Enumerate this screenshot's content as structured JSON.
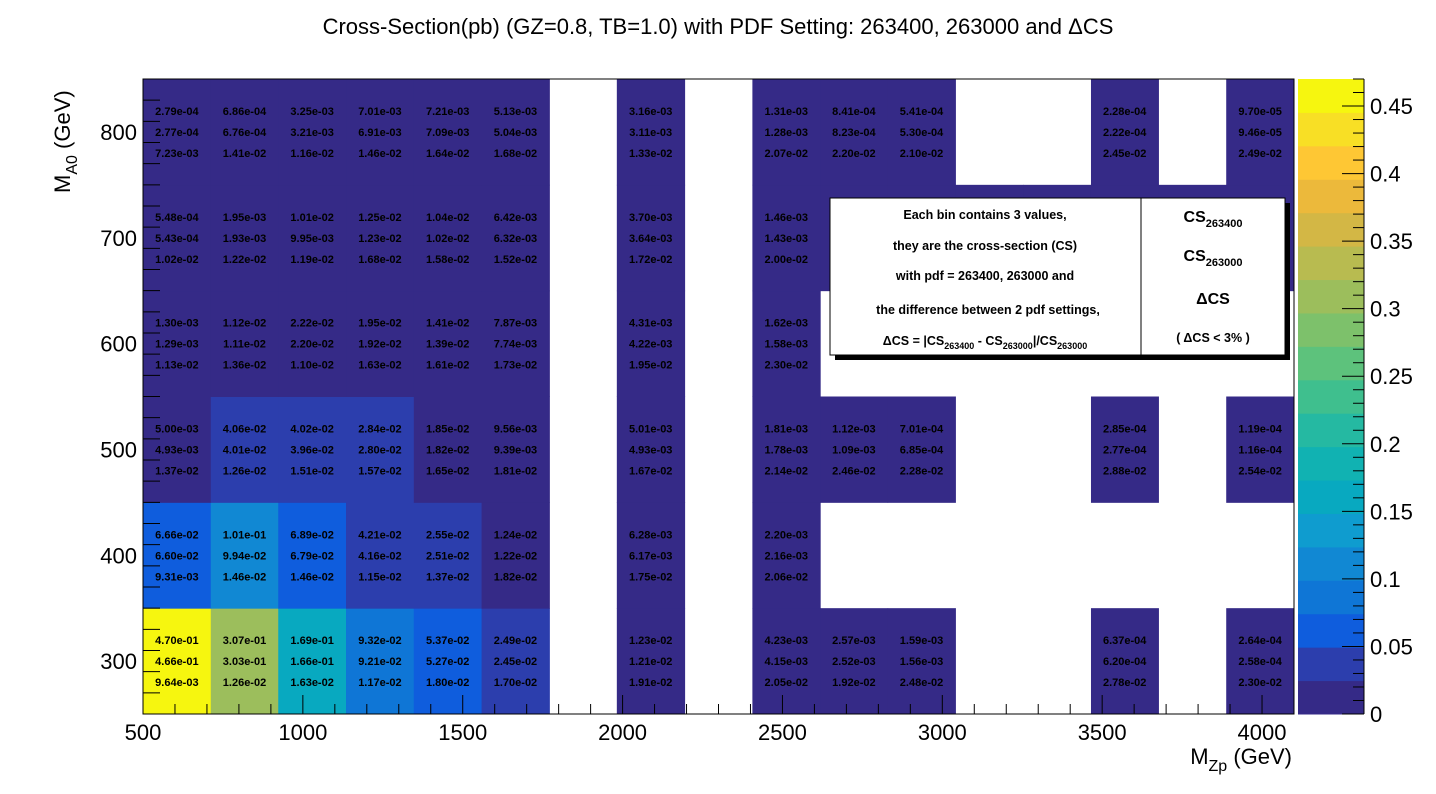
{
  "chart_data": {
    "type": "heatmap",
    "title": "Cross-Section(pb) (GZ=0.8, TB=1.0) with PDF Setting: 263400, 263000 and ΔCS",
    "xlabel": {
      "base": "M",
      "sub": "Zp",
      "rest": " (GeV)"
    },
    "ylabel": {
      "base": "M",
      "sub": "A0",
      "rest": " (GeV)"
    },
    "xlim": [
      500,
      4100
    ],
    "ylim": [
      250,
      850
    ],
    "x_ticks": [
      "500",
      "1000",
      "1500",
      "2000",
      "2500",
      "3000",
      "3500",
      "4000"
    ],
    "y_ticks": [
      "300",
      "400",
      "500",
      "600",
      "700",
      "800"
    ],
    "zlim": [
      0,
      0.47
    ],
    "z_ticks": [
      "0",
      "0.05",
      "0.1",
      "0.15",
      "0.2",
      "0.25",
      "0.3",
      "0.35",
      "0.4",
      "0.45"
    ],
    "x_bin_edges": [
      500,
      712,
      923,
      1135,
      1347,
      1559,
      1771,
      1982,
      2194,
      2406,
      2618,
      2829,
      3041,
      3253,
      3465,
      3676,
      3888,
      4100
    ],
    "y_bin_edges": [
      250,
      350,
      450,
      550,
      650,
      750,
      850
    ],
    "bins": [
      {
        "xb": 0,
        "yb": 0,
        "z": 0.47,
        "v": [
          "4.70e-01",
          "4.66e-01",
          "9.64e-03"
        ]
      },
      {
        "xb": 1,
        "yb": 0,
        "z": 0.307,
        "v": [
          "3.07e-01",
          "3.03e-01",
          "1.26e-02"
        ]
      },
      {
        "xb": 2,
        "yb": 0,
        "z": 0.169,
        "v": [
          "1.69e-01",
          "1.66e-01",
          "1.63e-02"
        ]
      },
      {
        "xb": 3,
        "yb": 0,
        "z": 0.0932,
        "v": [
          "9.32e-02",
          "9.21e-02",
          "1.17e-02"
        ]
      },
      {
        "xb": 4,
        "yb": 0,
        "z": 0.0537,
        "v": [
          "5.37e-02",
          "5.27e-02",
          "1.80e-02"
        ]
      },
      {
        "xb": 5,
        "yb": 0,
        "z": 0.0249,
        "v": [
          "2.49e-02",
          "2.45e-02",
          "1.70e-02"
        ]
      },
      {
        "xb": 7,
        "yb": 0,
        "z": 0.0123,
        "v": [
          "1.23e-02",
          "1.21e-02",
          "1.91e-02"
        ]
      },
      {
        "xb": 9,
        "yb": 0,
        "z": 0.00423,
        "v": [
          "4.23e-03",
          "4.15e-03",
          "2.05e-02"
        ]
      },
      {
        "xb": 10,
        "yb": 0,
        "z": 0.00257,
        "v": [
          "2.57e-03",
          "2.52e-03",
          "1.92e-02"
        ]
      },
      {
        "xb": 11,
        "yb": 0,
        "z": 0.00159,
        "v": [
          "1.59e-03",
          "1.56e-03",
          "2.48e-02"
        ]
      },
      {
        "xb": 14,
        "yb": 0,
        "z": 0.000637,
        "v": [
          "6.37e-04",
          "6.20e-04",
          "2.78e-02"
        ]
      },
      {
        "xb": 16,
        "yb": 0,
        "z": 0.000264,
        "v": [
          "2.64e-04",
          "2.58e-04",
          "2.30e-02"
        ]
      },
      {
        "xb": 0,
        "yb": 1,
        "z": 0.0666,
        "v": [
          "6.66e-02",
          "6.60e-02",
          "9.31e-03"
        ]
      },
      {
        "xb": 1,
        "yb": 1,
        "z": 0.101,
        "v": [
          "1.01e-01",
          "9.94e-02",
          "1.46e-02"
        ]
      },
      {
        "xb": 2,
        "yb": 1,
        "z": 0.0689,
        "v": [
          "6.89e-02",
          "6.79e-02",
          "1.46e-02"
        ]
      },
      {
        "xb": 3,
        "yb": 1,
        "z": 0.0421,
        "v": [
          "4.21e-02",
          "4.16e-02",
          "1.15e-02"
        ]
      },
      {
        "xb": 4,
        "yb": 1,
        "z": 0.0255,
        "v": [
          "2.55e-02",
          "2.51e-02",
          "1.37e-02"
        ]
      },
      {
        "xb": 5,
        "yb": 1,
        "z": 0.0124,
        "v": [
          "1.24e-02",
          "1.22e-02",
          "1.82e-02"
        ]
      },
      {
        "xb": 7,
        "yb": 1,
        "z": 0.00628,
        "v": [
          "6.28e-03",
          "6.17e-03",
          "1.75e-02"
        ]
      },
      {
        "xb": 9,
        "yb": 1,
        "z": 0.0022,
        "v": [
          "2.20e-03",
          "2.16e-03",
          "2.06e-02"
        ]
      },
      {
        "xb": 0,
        "yb": 2,
        "z": 0.005,
        "v": [
          "5.00e-03",
          "4.93e-03",
          "1.37e-02"
        ]
      },
      {
        "xb": 1,
        "yb": 2,
        "z": 0.0406,
        "v": [
          "4.06e-02",
          "4.01e-02",
          "1.26e-02"
        ]
      },
      {
        "xb": 2,
        "yb": 2,
        "z": 0.0402,
        "v": [
          "4.02e-02",
          "3.96e-02",
          "1.51e-02"
        ]
      },
      {
        "xb": 3,
        "yb": 2,
        "z": 0.0284,
        "v": [
          "2.84e-02",
          "2.80e-02",
          "1.57e-02"
        ]
      },
      {
        "xb": 4,
        "yb": 2,
        "z": 0.0185,
        "v": [
          "1.85e-02",
          "1.82e-02",
          "1.65e-02"
        ]
      },
      {
        "xb": 5,
        "yb": 2,
        "z": 0.00956,
        "v": [
          "9.56e-03",
          "9.39e-03",
          "1.81e-02"
        ]
      },
      {
        "xb": 7,
        "yb": 2,
        "z": 0.00501,
        "v": [
          "5.01e-03",
          "4.93e-03",
          "1.67e-02"
        ]
      },
      {
        "xb": 9,
        "yb": 2,
        "z": 0.00181,
        "v": [
          "1.81e-03",
          "1.78e-03",
          "2.14e-02"
        ]
      },
      {
        "xb": 10,
        "yb": 2,
        "z": 0.00112,
        "v": [
          "1.12e-03",
          "1.09e-03",
          "2.46e-02"
        ]
      },
      {
        "xb": 11,
        "yb": 2,
        "z": 0.000701,
        "v": [
          "7.01e-04",
          "6.85e-04",
          "2.28e-02"
        ]
      },
      {
        "xb": 14,
        "yb": 2,
        "z": 0.000285,
        "v": [
          "2.85e-04",
          "2.77e-04",
          "2.88e-02"
        ]
      },
      {
        "xb": 16,
        "yb": 2,
        "z": 0.000119,
        "v": [
          "1.19e-04",
          "1.16e-04",
          "2.54e-02"
        ]
      },
      {
        "xb": 0,
        "yb": 3,
        "z": 0.0013,
        "v": [
          "1.30e-03",
          "1.29e-03",
          "1.13e-02"
        ]
      },
      {
        "xb": 1,
        "yb": 3,
        "z": 0.0112,
        "v": [
          "1.12e-02",
          "1.11e-02",
          "1.36e-02"
        ]
      },
      {
        "xb": 2,
        "yb": 3,
        "z": 0.0222,
        "v": [
          "2.22e-02",
          "2.20e-02",
          "1.10e-02"
        ]
      },
      {
        "xb": 3,
        "yb": 3,
        "z": 0.0195,
        "v": [
          "1.95e-02",
          "1.92e-02",
          "1.63e-02"
        ]
      },
      {
        "xb": 4,
        "yb": 3,
        "z": 0.0141,
        "v": [
          "1.41e-02",
          "1.39e-02",
          "1.61e-02"
        ]
      },
      {
        "xb": 5,
        "yb": 3,
        "z": 0.00787,
        "v": [
          "7.87e-03",
          "7.74e-03",
          "1.73e-02"
        ]
      },
      {
        "xb": 7,
        "yb": 3,
        "z": 0.00431,
        "v": [
          "4.31e-03",
          "4.22e-03",
          "1.95e-02"
        ]
      },
      {
        "xb": 9,
        "yb": 3,
        "z": 0.00162,
        "v": [
          "1.62e-03",
          "1.58e-03",
          "2.30e-02"
        ]
      },
      {
        "xb": 0,
        "yb": 4,
        "z": 0.000548,
        "v": [
          "5.48e-04",
          "5.43e-04",
          "1.02e-02"
        ]
      },
      {
        "xb": 1,
        "yb": 4,
        "z": 0.00195,
        "v": [
          "1.95e-03",
          "1.93e-03",
          "1.22e-02"
        ]
      },
      {
        "xb": 2,
        "yb": 4,
        "z": 0.0101,
        "v": [
          "1.01e-02",
          "9.95e-03",
          "1.19e-02"
        ]
      },
      {
        "xb": 3,
        "yb": 4,
        "z": 0.0125,
        "v": [
          "1.25e-02",
          "1.23e-02",
          "1.68e-02"
        ]
      },
      {
        "xb": 4,
        "yb": 4,
        "z": 0.0104,
        "v": [
          "1.04e-02",
          "1.02e-02",
          "1.58e-02"
        ]
      },
      {
        "xb": 5,
        "yb": 4,
        "z": 0.00642,
        "v": [
          "6.42e-03",
          "6.32e-03",
          "1.52e-02"
        ]
      },
      {
        "xb": 7,
        "yb": 4,
        "z": 0.0037,
        "v": [
          "3.70e-03",
          "3.64e-03",
          "1.72e-02"
        ]
      },
      {
        "xb": 9,
        "yb": 4,
        "z": 0.00146,
        "v": [
          "1.46e-03",
          "1.43e-03",
          "2.00e-02"
        ]
      },
      {
        "xb": 10,
        "yb": 4,
        "z": 0.0009,
        "v": null
      },
      {
        "xb": 11,
        "yb": 4,
        "z": 0.0006,
        "v": null
      },
      {
        "xb": 12,
        "yb": 4,
        "z": 0.0004,
        "v": null
      },
      {
        "xb": 13,
        "yb": 4,
        "z": 0.0003,
        "v": null
      },
      {
        "xb": 14,
        "yb": 4,
        "z": 0.0002,
        "v": null
      },
      {
        "xb": 15,
        "yb": 4,
        "z": 0.00015,
        "v": null
      },
      {
        "xb": 16,
        "yb": 4,
        "z": 0.0001,
        "v": null
      },
      {
        "xb": 0,
        "yb": 5,
        "z": 0.000279,
        "v": [
          "2.79e-04",
          "2.77e-04",
          "7.23e-03"
        ]
      },
      {
        "xb": 1,
        "yb": 5,
        "z": 0.000686,
        "v": [
          "6.86e-04",
          "6.76e-04",
          "1.41e-02"
        ]
      },
      {
        "xb": 2,
        "yb": 5,
        "z": 0.00325,
        "v": [
          "3.25e-03",
          "3.21e-03",
          "1.16e-02"
        ]
      },
      {
        "xb": 3,
        "yb": 5,
        "z": 0.00701,
        "v": [
          "7.01e-03",
          "6.91e-03",
          "1.46e-02"
        ]
      },
      {
        "xb": 4,
        "yb": 5,
        "z": 0.00721,
        "v": [
          "7.21e-03",
          "7.09e-03",
          "1.64e-02"
        ]
      },
      {
        "xb": 5,
        "yb": 5,
        "z": 0.00513,
        "v": [
          "5.13e-03",
          "5.04e-03",
          "1.68e-02"
        ]
      },
      {
        "xb": 7,
        "yb": 5,
        "z": 0.00316,
        "v": [
          "3.16e-03",
          "3.11e-03",
          "1.33e-02"
        ]
      },
      {
        "xb": 9,
        "yb": 5,
        "z": 0.00131,
        "v": [
          "1.31e-03",
          "1.28e-03",
          "2.07e-02"
        ]
      },
      {
        "xb": 10,
        "yb": 5,
        "z": 0.000841,
        "v": [
          "8.41e-04",
          "8.23e-04",
          "2.20e-02"
        ]
      },
      {
        "xb": 11,
        "yb": 5,
        "z": 0.000541,
        "v": [
          "5.41e-04",
          "5.30e-04",
          "2.10e-02"
        ]
      },
      {
        "xb": 14,
        "yb": 5,
        "z": 0.000228,
        "v": [
          "2.28e-04",
          "2.22e-04",
          "2.45e-02"
        ]
      },
      {
        "xb": 16,
        "yb": 5,
        "z": 9.7e-05,
        "v": [
          "9.70e-05",
          "9.46e-05",
          "2.49e-02"
        ]
      }
    ]
  },
  "legend": {
    "lines": [
      "Each bin contains 3 values,",
      "they are the cross-section (CS)",
      "with pdf = 263400, 263000 and",
      "the difference between 2 pdf settings,"
    ],
    "formula": {
      "p1": "ΔCS = |CS",
      "s1": "263400",
      "p2": " - CS",
      "s2": "263000",
      "p3": "|/CS",
      "s3": "263000"
    },
    "right": {
      "cs1_base": "CS",
      "cs1_sub": "263400",
      "cs2_base": "CS",
      "cs2_sub": "263000",
      "dcs": "ΔCS",
      "note": "( ΔCS < 3% )"
    }
  },
  "colors": {
    "palette": [
      "#352a87",
      "#2c3ead",
      "#0f5ddd",
      "#0f76d6",
      "#1188d3",
      "#0f9ccf",
      "#08a9c0",
      "#11b2b2",
      "#25b9a2",
      "#3fbf8e",
      "#5dc27c",
      "#7dc16b",
      "#9cbe5c",
      "#b8bb50",
      "#d3b745",
      "#ecb93b",
      "#fec734",
      "#f8df25",
      "#f6f60f"
    ]
  }
}
